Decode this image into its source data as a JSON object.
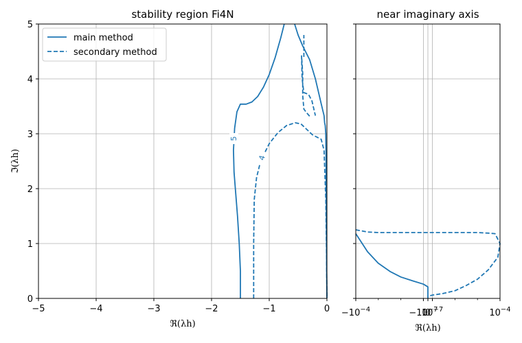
{
  "colors": {
    "series": "#1f77b4",
    "grid": "#b0b0b0",
    "axis": "#000000"
  },
  "chart_data": [
    {
      "type": "line",
      "title": "stability region Fi4N",
      "xlabel": "ℜ(λh)",
      "ylabel": "ℑ(λh)",
      "xlim": [
        -5,
        0
      ],
      "ylim": [
        0,
        5
      ],
      "xticks": [
        -5,
        -4,
        -3,
        -2,
        -1,
        0
      ],
      "xtick_labels": [
        "−5",
        "−4",
        "−3",
        "−2",
        "−1",
        "0"
      ],
      "yticks": [
        0,
        1,
        2,
        3,
        4,
        5
      ],
      "ytick_labels": [
        "0",
        "1",
        "2",
        "3",
        "4",
        "5"
      ],
      "grid": true,
      "legend": "upper-left",
      "legend_entries": [
        "main method",
        "secondary method"
      ],
      "contour_labels": [
        {
          "text": "5",
          "x": -1.6,
          "y": 2.93,
          "rotation": -90
        },
        {
          "text": "4",
          "x": -1.17,
          "y": 2.57,
          "rotation": -75
        }
      ],
      "series": [
        {
          "name": "main method",
          "style": "solid",
          "segments": [
            [
              [
                -1.5,
                0
              ],
              [
                -1.5,
                0.5
              ],
              [
                -1.52,
                1.0
              ],
              [
                -1.55,
                1.5
              ],
              [
                -1.58,
                1.9
              ],
              [
                -1.61,
                2.3
              ],
              [
                -1.62,
                2.7
              ],
              [
                -1.6,
                3.1
              ],
              [
                -1.56,
                3.4
              ],
              [
                -1.5,
                3.54
              ],
              [
                -1.4,
                3.54
              ],
              [
                -1.3,
                3.58
              ],
              [
                -1.2,
                3.68
              ],
              [
                -1.1,
                3.85
              ],
              [
                -1.0,
                4.08
              ],
              [
                -0.9,
                4.38
              ],
              [
                -0.8,
                4.75
              ],
              [
                -0.74,
                5.0
              ]
            ],
            [
              [
                -0.56,
                5.0
              ],
              [
                -0.5,
                4.8
              ],
              [
                -0.42,
                4.6
              ],
              [
                -0.3,
                4.35
              ],
              [
                -0.2,
                4.0
              ],
              [
                -0.1,
                3.55
              ],
              [
                -0.05,
                3.33
              ],
              [
                -0.04,
                3.2
              ],
              [
                -0.03,
                3.15
              ],
              [
                -0.02,
                3.0
              ],
              [
                -0.015,
                2.5
              ],
              [
                -0.01,
                1.5
              ],
              [
                -0.005,
                0.5
              ],
              [
                0,
                0
              ]
            ]
          ]
        },
        {
          "name": "secondary method",
          "style": "dashed",
          "segments": [
            [
              [
                -1.27,
                0
              ],
              [
                -1.27,
                1.0
              ],
              [
                -1.26,
                1.8
              ],
              [
                -1.22,
                2.2
              ],
              [
                -1.15,
                2.5
              ],
              [
                -1.0,
                2.82
              ],
              [
                -0.85,
                3.02
              ],
              [
                -0.7,
                3.15
              ],
              [
                -0.55,
                3.2
              ],
              [
                -0.45,
                3.18
              ],
              [
                -0.35,
                3.08
              ],
              [
                -0.25,
                2.98
              ],
              [
                -0.1,
                2.9
              ],
              [
                -0.05,
                2.7
              ],
              [
                -0.02,
                1.8
              ],
              [
                -0.01,
                1.0
              ],
              [
                0,
                0
              ]
            ],
            [
              [
                -0.3,
                3.32
              ],
              [
                -0.35,
                3.38
              ],
              [
                -0.4,
                3.45
              ],
              [
                -0.42,
                3.7
              ],
              [
                -0.42,
                4.1
              ],
              [
                -0.44,
                4.42
              ],
              [
                -0.43,
                4.0
              ],
              [
                -0.4,
                3.75
              ],
              [
                -0.32,
                3.72
              ],
              [
                -0.26,
                3.6
              ],
              [
                -0.22,
                3.42
              ],
              [
                -0.2,
                3.33
              ]
            ],
            [
              [
                -0.4,
                4.4
              ],
              [
                -0.4,
                4.55
              ],
              [
                -0.4,
                4.8
              ]
            ]
          ]
        }
      ]
    },
    {
      "type": "line",
      "title": "near imaginary axis",
      "xlabel": "ℜ(λh)",
      "xscale": "symlog",
      "xlim": [
        -0.0001,
        0.0001
      ],
      "xtick_labels": [
        "−10",
        "−4",
        "−10",
        "−7",
        "0",
        "10",
        "−7",
        "10",
        "−4"
      ],
      "xticks_display": [
        {
          "base": "−10",
          "exp": "−4",
          "value": -0.0001
        },
        {
          "base": "−10",
          "exp": "−7",
          "value": -1e-07
        },
        {
          "base": "0",
          "exp": "",
          "value": 0
        },
        {
          "base": "10",
          "exp": "−7",
          "value": 1e-07
        },
        {
          "base": "10",
          "exp": "−4",
          "value": 0.0001
        }
      ],
      "ylim": [
        0,
        5
      ],
      "yticks": [
        0,
        1,
        2,
        3,
        4,
        5
      ],
      "grid": true,
      "series": [
        {
          "name": "main method",
          "style": "solid",
          "segments": [
            [
              [
                -0.0001,
                1.18
              ],
              [
                -3e-05,
                0.85
              ],
              [
                -1e-05,
                0.64
              ],
              [
                -3e-06,
                0.49
              ],
              [
                -1e-06,
                0.39
              ],
              [
                -3e-07,
                0.32
              ],
              [
                -1e-07,
                0.26
              ],
              [
                -3e-08,
                0.21
              ],
              [
                -1e-08,
                0.17
              ],
              [
                0,
                0.13
              ],
              [
                0,
                0.0
              ]
            ]
          ]
        },
        {
          "name": "secondary method",
          "style": "dashed",
          "segments": [
            [
              [
                -0.0001,
                1.25
              ],
              [
                -3e-05,
                1.21
              ],
              [
                -1e-05,
                1.2
              ],
              [
                0,
                1.2
              ],
              [
                1e-05,
                1.2
              ],
              [
                3e-05,
                1.19
              ],
              [
                6e-05,
                1.18
              ],
              [
                0.0001,
                1.0
              ],
              [
                8e-05,
                0.75
              ],
              [
                3e-05,
                0.52
              ],
              [
                1e-05,
                0.35
              ],
              [
                3e-06,
                0.23
              ],
              [
                1e-06,
                0.14
              ],
              [
                3e-07,
                0.09
              ],
              [
                1e-07,
                0.06
              ],
              [
                3e-08,
                0.04
              ],
              [
                0,
                0.03
              ]
            ]
          ]
        }
      ]
    }
  ]
}
